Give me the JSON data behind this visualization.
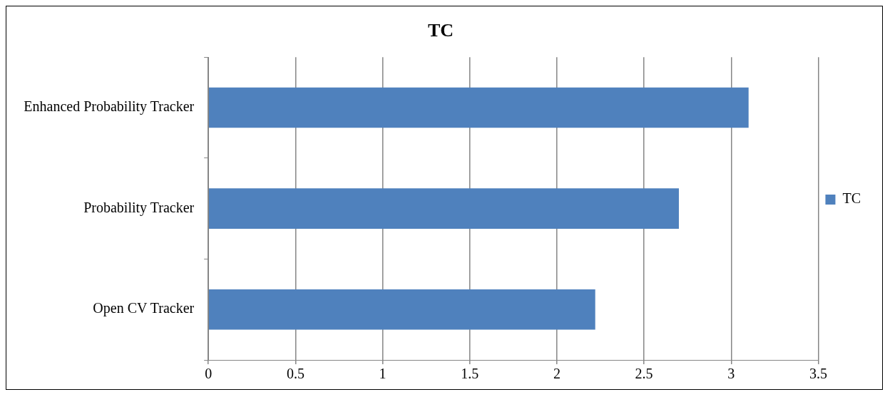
{
  "chart_data": {
    "type": "bar",
    "orientation": "horizontal",
    "title": "TC",
    "categories": [
      "Enhanced Probability Tracker",
      "Probability Tracker",
      "Open CV Tracker"
    ],
    "series": [
      {
        "name": "TC",
        "color": "#4f81bd",
        "values": [
          3.1,
          2.7,
          2.22
        ]
      }
    ],
    "xlim": [
      0,
      3.5
    ],
    "xticks": [
      0,
      0.5,
      1,
      1.5,
      2,
      2.5,
      3,
      3.5
    ],
    "grid": "x",
    "legend": "right"
  }
}
